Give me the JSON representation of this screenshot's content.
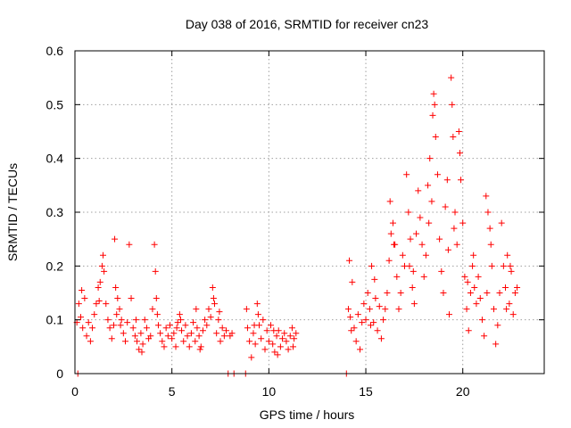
{
  "chart_data": {
    "type": "scatter",
    "title": "Day 038 of 2016, SRMTID for receiver cn23",
    "xlabel": "GPS time / hours",
    "ylabel": "SRMTID / TECUs",
    "xlim": [
      0,
      24.2
    ],
    "ylim": [
      0,
      0.6
    ],
    "xticks": [
      0,
      5,
      10,
      15,
      20
    ],
    "xtick_labels": [
      "0",
      "5",
      "10",
      "15",
      "20"
    ],
    "yticks": [
      0,
      0.1,
      0.2,
      0.3,
      0.4,
      0.5,
      0.6
    ],
    "ytick_labels": [
      "0",
      "0.1",
      "0.2",
      "0.3",
      "0.4",
      "0.5",
      "0.6"
    ],
    "grid": true,
    "marker": "plus",
    "series": [
      {
        "name": "SRMTID",
        "color": "#ff0000",
        "points": [
          [
            0.1,
            0.095
          ],
          [
            0.2,
            0.13
          ],
          [
            0.3,
            0.105
          ],
          [
            0.4,
            0.085
          ],
          [
            0.5,
            0.14
          ],
          [
            0.6,
            0.07
          ],
          [
            0.7,
            0.095
          ],
          [
            0.8,
            0.06
          ],
          [
            0.9,
            0.085
          ],
          [
            1.0,
            0.11
          ],
          [
            1.1,
            0.13
          ],
          [
            1.2,
            0.16
          ],
          [
            1.3,
            0.17
          ],
          [
            1.4,
            0.2
          ],
          [
            1.5,
            0.19
          ],
          [
            1.6,
            0.13
          ],
          [
            1.7,
            0.1
          ],
          [
            1.8,
            0.085
          ],
          [
            1.9,
            0.065
          ],
          [
            2.0,
            0.09
          ],
          [
            2.05,
            0.25
          ],
          [
            2.1,
            0.16
          ],
          [
            2.2,
            0.14
          ],
          [
            2.3,
            0.12
          ],
          [
            2.4,
            0.1
          ],
          [
            2.5,
            0.075
          ],
          [
            2.6,
            0.06
          ],
          [
            2.7,
            0.095
          ],
          [
            2.8,
            0.24
          ],
          [
            2.9,
            0.14
          ],
          [
            3.0,
            0.085
          ],
          [
            3.1,
            0.07
          ],
          [
            3.2,
            0.06
          ],
          [
            3.3,
            0.045
          ],
          [
            3.4,
            0.075
          ],
          [
            3.5,
            0.055
          ],
          [
            3.6,
            0.1
          ],
          [
            3.7,
            0.085
          ],
          [
            3.8,
            0.065
          ],
          [
            3.9,
            0.07
          ],
          [
            4.0,
            0.12
          ],
          [
            4.1,
            0.24
          ],
          [
            4.15,
            0.19
          ],
          [
            4.2,
            0.14
          ],
          [
            4.3,
            0.09
          ],
          [
            4.4,
            0.075
          ],
          [
            4.5,
            0.06
          ],
          [
            4.6,
            0.05
          ],
          [
            4.7,
            0.085
          ],
          [
            4.8,
            0.07
          ],
          [
            4.9,
            0.09
          ],
          [
            5.0,
            0.065
          ],
          [
            5.1,
            0.075
          ],
          [
            5.2,
            0.05
          ],
          [
            5.3,
            0.095
          ],
          [
            5.4,
            0.11
          ],
          [
            5.5,
            0.08
          ],
          [
            5.6,
            0.06
          ],
          [
            5.7,
            0.09
          ],
          [
            5.8,
            0.07
          ],
          [
            5.9,
            0.05
          ],
          [
            6.0,
            0.075
          ],
          [
            6.1,
            0.095
          ],
          [
            6.2,
            0.06
          ],
          [
            6.3,
            0.085
          ],
          [
            6.4,
            0.07
          ],
          [
            6.5,
            0.05
          ],
          [
            6.6,
            0.08
          ],
          [
            6.7,
            0.1
          ],
          [
            6.8,
            0.09
          ],
          [
            6.9,
            0.12
          ],
          [
            7.0,
            0.105
          ],
          [
            7.1,
            0.16
          ],
          [
            7.2,
            0.13
          ],
          [
            7.3,
            0.075
          ],
          [
            7.4,
            0.1
          ],
          [
            7.5,
            0.06
          ],
          [
            7.6,
            0.085
          ],
          [
            7.7,
            0.07
          ],
          [
            7.8,
            0.08
          ],
          [
            7.9,
            0.0
          ],
          [
            8.0,
            0.07
          ],
          [
            8.1,
            0.075
          ],
          [
            8.2,
            0.0
          ],
          [
            8.8,
            0.0
          ],
          [
            8.85,
            0.12
          ],
          [
            8.9,
            0.085
          ],
          [
            9.0,
            0.06
          ],
          [
            9.1,
            0.03
          ],
          [
            9.2,
            0.075
          ],
          [
            9.3,
            0.055
          ],
          [
            9.4,
            0.13
          ],
          [
            9.5,
            0.09
          ],
          [
            9.6,
            0.065
          ],
          [
            9.7,
            0.1
          ],
          [
            9.8,
            0.045
          ],
          [
            9.9,
            0.08
          ],
          [
            10.0,
            0.06
          ],
          [
            10.1,
            0.09
          ],
          [
            10.2,
            0.055
          ],
          [
            10.3,
            0.04
          ],
          [
            10.4,
            0.07
          ],
          [
            10.5,
            0.08
          ],
          [
            10.6,
            0.05
          ],
          [
            10.7,
            0.065
          ],
          [
            10.8,
            0.075
          ],
          [
            10.9,
            0.06
          ],
          [
            11.0,
            0.045
          ],
          [
            11.1,
            0.07
          ],
          [
            11.2,
            0.085
          ],
          [
            11.3,
            0.065
          ],
          [
            11.4,
            0.075
          ],
          [
            14.0,
            0.0
          ],
          [
            14.1,
            0.12
          ],
          [
            14.15,
            0.21
          ],
          [
            14.2,
            0.105
          ],
          [
            14.3,
            0.17
          ],
          [
            14.4,
            0.085
          ],
          [
            14.5,
            0.06
          ],
          [
            14.6,
            0.11
          ],
          [
            14.7,
            0.045
          ],
          [
            14.8,
            0.095
          ],
          [
            14.9,
            0.13
          ],
          [
            15.0,
            0.1
          ],
          [
            15.1,
            0.15
          ],
          [
            15.2,
            0.12
          ],
          [
            15.3,
            0.2
          ],
          [
            15.4,
            0.095
          ],
          [
            15.5,
            0.14
          ],
          [
            15.6,
            0.08
          ],
          [
            15.7,
            0.125
          ],
          [
            15.8,
            0.065
          ],
          [
            15.9,
            0.1
          ],
          [
            16.0,
            0.12
          ],
          [
            16.1,
            0.15
          ],
          [
            16.2,
            0.21
          ],
          [
            16.3,
            0.26
          ],
          [
            16.4,
            0.28
          ],
          [
            16.5,
            0.24
          ],
          [
            16.6,
            0.18
          ],
          [
            16.7,
            0.12
          ],
          [
            16.8,
            0.15
          ],
          [
            16.9,
            0.22
          ],
          [
            17.0,
            0.2
          ],
          [
            17.1,
            0.37
          ],
          [
            17.2,
            0.3
          ],
          [
            17.3,
            0.25
          ],
          [
            17.4,
            0.16
          ],
          [
            17.5,
            0.13
          ],
          [
            17.6,
            0.26
          ],
          [
            17.7,
            0.34
          ],
          [
            17.8,
            0.29
          ],
          [
            17.9,
            0.24
          ],
          [
            18.0,
            0.18
          ],
          [
            18.1,
            0.22
          ],
          [
            18.2,
            0.35
          ],
          [
            18.3,
            0.4
          ],
          [
            18.4,
            0.32
          ],
          [
            18.5,
            0.52
          ],
          [
            18.55,
            0.5
          ],
          [
            18.6,
            0.44
          ],
          [
            18.7,
            0.37
          ],
          [
            18.8,
            0.25
          ],
          [
            18.9,
            0.19
          ],
          [
            19.0,
            0.15
          ],
          [
            19.1,
            0.31
          ],
          [
            19.2,
            0.36
          ],
          [
            19.3,
            0.11
          ],
          [
            19.4,
            0.55
          ],
          [
            19.45,
            0.5
          ],
          [
            19.5,
            0.44
          ],
          [
            19.6,
            0.3
          ],
          [
            19.7,
            0.24
          ],
          [
            19.8,
            0.45
          ],
          [
            19.85,
            0.41
          ],
          [
            19.9,
            0.36
          ],
          [
            20.0,
            0.28
          ],
          [
            20.1,
            0.18
          ],
          [
            20.2,
            0.12
          ],
          [
            20.3,
            0.08
          ],
          [
            20.4,
            0.15
          ],
          [
            20.5,
            0.2
          ],
          [
            20.6,
            0.16
          ],
          [
            20.7,
            0.13
          ],
          [
            20.8,
            0.18
          ],
          [
            20.9,
            0.14
          ],
          [
            21.0,
            0.1
          ],
          [
            21.1,
            0.07
          ],
          [
            21.2,
            0.33
          ],
          [
            21.3,
            0.3
          ],
          [
            21.4,
            0.27
          ],
          [
            21.5,
            0.2
          ],
          [
            21.6,
            0.12
          ],
          [
            21.7,
            0.055
          ],
          [
            21.8,
            0.09
          ],
          [
            21.9,
            0.15
          ],
          [
            22.0,
            0.28
          ],
          [
            22.1,
            0.2
          ],
          [
            22.2,
            0.16
          ],
          [
            22.3,
            0.22
          ],
          [
            22.4,
            0.13
          ],
          [
            22.5,
            0.19
          ],
          [
            22.6,
            0.11
          ],
          [
            22.7,
            0.15
          ],
          [
            22.8,
            0.16
          ],
          [
            0.15,
            0.0
          ],
          [
            1.45,
            0.22
          ],
          [
            2.15,
            0.11
          ],
          [
            3.45,
            0.04
          ],
          [
            5.45,
            0.1
          ],
          [
            6.45,
            0.045
          ],
          [
            7.45,
            0.115
          ],
          [
            9.45,
            0.11
          ],
          [
            10.45,
            0.035
          ],
          [
            15.45,
            0.175
          ],
          [
            16.45,
            0.24
          ],
          [
            17.45,
            0.19
          ],
          [
            18.45,
            0.48
          ],
          [
            19.55,
            0.27
          ],
          [
            20.55,
            0.22
          ],
          [
            21.45,
            0.24
          ],
          [
            22.45,
            0.2
          ],
          [
            0.35,
            0.155
          ],
          [
            1.25,
            0.135
          ],
          [
            2.35,
            0.09
          ],
          [
            3.15,
            0.1
          ],
          [
            4.25,
            0.11
          ],
          [
            5.25,
            0.085
          ],
          [
            6.25,
            0.12
          ],
          [
            7.15,
            0.14
          ],
          [
            9.25,
            0.09
          ],
          [
            10.25,
            0.08
          ],
          [
            11.25,
            0.05
          ],
          [
            14.25,
            0.08
          ],
          [
            15.25,
            0.09
          ],
          [
            16.25,
            0.32
          ],
          [
            17.25,
            0.2
          ],
          [
            18.25,
            0.28
          ],
          [
            19.25,
            0.23
          ],
          [
            20.25,
            0.17
          ],
          [
            21.25,
            0.15
          ],
          [
            22.25,
            0.12
          ]
        ]
      }
    ]
  }
}
